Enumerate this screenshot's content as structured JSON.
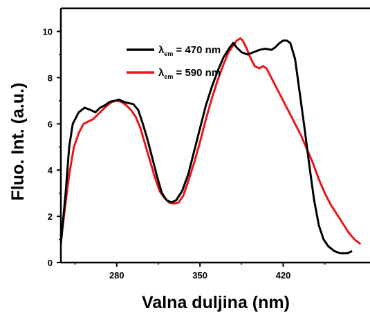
{
  "chart_data": {
    "type": "line",
    "title": "",
    "xlabel": "Valna duljina (nm)",
    "ylabel": "Fluo. Int. (a.u.)",
    "xlim": [
      233,
      493
    ],
    "ylim": [
      0,
      11
    ],
    "xticks": [
      280,
      350,
      420
    ],
    "yticks": [
      0,
      2,
      4,
      6,
      8,
      10
    ],
    "grid": false,
    "legend_position": "top-center",
    "series": [
      {
        "name_symbol": "λ",
        "name_subscript": "em",
        "name_value": "= 470 nm",
        "color": "#000000",
        "points": [
          [
            233,
            0.8
          ],
          [
            237,
            3.0
          ],
          [
            240,
            5.0
          ],
          [
            243,
            6.0
          ],
          [
            248,
            6.5
          ],
          [
            253,
            6.7
          ],
          [
            258,
            6.6
          ],
          [
            262,
            6.5
          ],
          [
            266,
            6.7
          ],
          [
            270,
            6.8
          ],
          [
            274,
            6.95
          ],
          [
            278,
            7.0
          ],
          [
            282,
            7.05
          ],
          [
            286,
            6.95
          ],
          [
            290,
            6.9
          ],
          [
            294,
            6.85
          ],
          [
            298,
            6.6
          ],
          [
            302,
            6.0
          ],
          [
            306,
            5.3
          ],
          [
            310,
            4.5
          ],
          [
            314,
            3.7
          ],
          [
            318,
            3.0
          ],
          [
            322,
            2.7
          ],
          [
            326,
            2.6
          ],
          [
            330,
            2.7
          ],
          [
            335,
            3.1
          ],
          [
            340,
            3.8
          ],
          [
            345,
            4.8
          ],
          [
            350,
            5.8
          ],
          [
            355,
            6.8
          ],
          [
            360,
            7.6
          ],
          [
            365,
            8.3
          ],
          [
            370,
            8.9
          ],
          [
            375,
            9.3
          ],
          [
            378,
            9.5
          ],
          [
            381,
            9.3
          ],
          [
            385,
            9.1
          ],
          [
            390,
            9.0
          ],
          [
            395,
            9.1
          ],
          [
            400,
            9.2
          ],
          [
            405,
            9.25
          ],
          [
            410,
            9.2
          ],
          [
            413,
            9.3
          ],
          [
            417,
            9.5
          ],
          [
            420,
            9.6
          ],
          [
            423,
            9.6
          ],
          [
            426,
            9.5
          ],
          [
            430,
            8.8
          ],
          [
            434,
            7.3
          ],
          [
            438,
            5.8
          ],
          [
            442,
            4.2
          ],
          [
            446,
            2.7
          ],
          [
            450,
            1.6
          ],
          [
            454,
            1.0
          ],
          [
            458,
            0.7
          ],
          [
            463,
            0.5
          ],
          [
            468,
            0.4
          ],
          [
            474,
            0.4
          ],
          [
            478,
            0.5
          ]
        ]
      },
      {
        "name_symbol": "λ",
        "name_subscript": "em",
        "name_value": "= 590 nm",
        "color": "#e8161b",
        "points": [
          [
            233,
            0.9
          ],
          [
            236,
            2.2
          ],
          [
            240,
            3.8
          ],
          [
            244,
            5.0
          ],
          [
            248,
            5.6
          ],
          [
            252,
            6.0
          ],
          [
            256,
            6.1
          ],
          [
            260,
            6.2
          ],
          [
            264,
            6.4
          ],
          [
            268,
            6.6
          ],
          [
            272,
            6.8
          ],
          [
            276,
            6.95
          ],
          [
            280,
            7.0
          ],
          [
            284,
            6.95
          ],
          [
            288,
            6.8
          ],
          [
            292,
            6.6
          ],
          [
            296,
            6.3
          ],
          [
            300,
            5.8
          ],
          [
            304,
            5.1
          ],
          [
            308,
            4.4
          ],
          [
            312,
            3.7
          ],
          [
            316,
            3.1
          ],
          [
            320,
            2.8
          ],
          [
            324,
            2.6
          ],
          [
            328,
            2.55
          ],
          [
            332,
            2.6
          ],
          [
            336,
            2.9
          ],
          [
            340,
            3.5
          ],
          [
            345,
            4.3
          ],
          [
            350,
            5.2
          ],
          [
            355,
            6.2
          ],
          [
            360,
            7.1
          ],
          [
            365,
            7.9
          ],
          [
            370,
            8.6
          ],
          [
            374,
            9.1
          ],
          [
            378,
            9.4
          ],
          [
            381,
            9.6
          ],
          [
            384,
            9.7
          ],
          [
            386,
            9.6
          ],
          [
            389,
            9.3
          ],
          [
            392,
            8.9
          ],
          [
            396,
            8.5
          ],
          [
            400,
            8.4
          ],
          [
            403,
            8.5
          ],
          [
            406,
            8.4
          ],
          [
            410,
            8.0
          ],
          [
            415,
            7.5
          ],
          [
            420,
            7.0
          ],
          [
            425,
            6.5
          ],
          [
            430,
            6.0
          ],
          [
            435,
            5.5
          ],
          [
            440,
            4.9
          ],
          [
            445,
            4.3
          ],
          [
            450,
            3.6
          ],
          [
            455,
            3.0
          ],
          [
            460,
            2.5
          ],
          [
            465,
            2.1
          ],
          [
            470,
            1.7
          ],
          [
            475,
            1.3
          ],
          [
            480,
            1.0
          ],
          [
            485,
            0.8
          ]
        ]
      }
    ]
  }
}
